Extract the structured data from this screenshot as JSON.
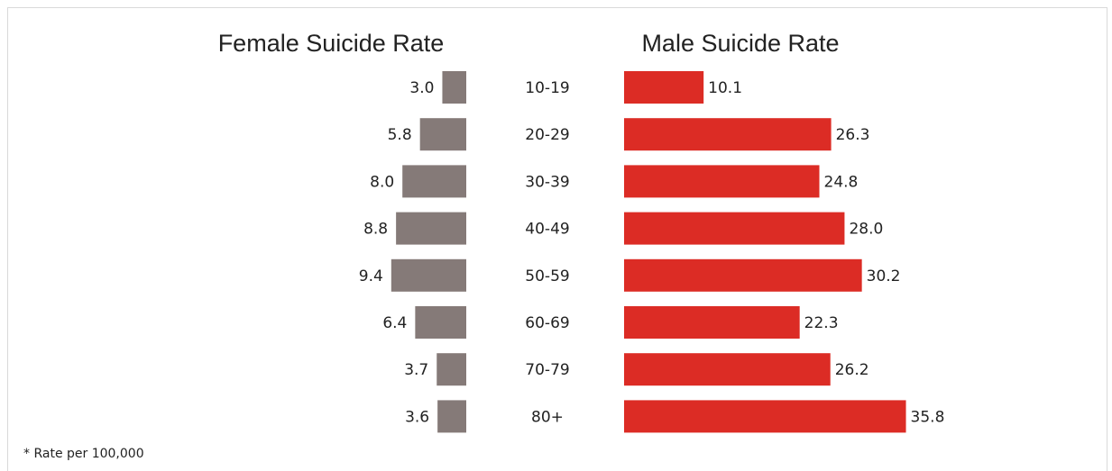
{
  "chart_data": {
    "type": "bar",
    "orientation": "horizontal",
    "layout": "back-to-back",
    "categories": [
      "10-19",
      "20-29",
      "30-39",
      "40-49",
      "50-59",
      "60-69",
      "70-79",
      "80+"
    ],
    "series": [
      {
        "name": "Female Suicide Rate",
        "values": [
          3.0,
          5.8,
          8.0,
          8.8,
          9.4,
          6.4,
          3.7,
          3.6
        ],
        "labels": [
          "3.0",
          "5.8",
          "8.0",
          "8.8",
          "9.4",
          "6.4",
          "3.7",
          "3.6"
        ],
        "color": "#857a78",
        "direction": "left"
      },
      {
        "name": "Male Suicide Rate",
        "values": [
          10.1,
          26.3,
          24.8,
          28.0,
          30.2,
          22.3,
          26.2,
          35.8
        ],
        "labels": [
          "10.1",
          "26.3",
          "24.8",
          "28.0",
          "30.2",
          "22.3",
          "26.2",
          "35.8"
        ],
        "color": "#dc2c25",
        "direction": "right"
      }
    ],
    "footnote": "* Rate per 100,000",
    "grid": false,
    "legend": "none"
  }
}
